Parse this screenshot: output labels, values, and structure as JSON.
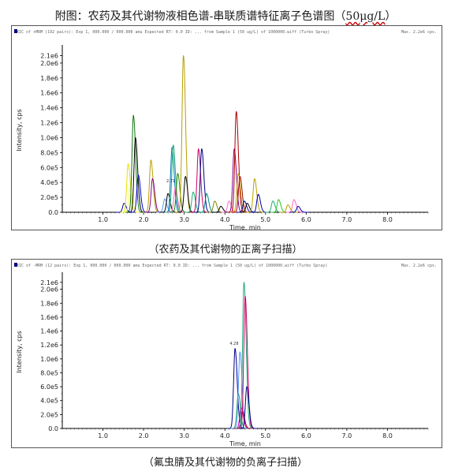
{
  "page_title": {
    "text": "附图：农药及其代谢物液相色谱-串联质谱特征离子色谱图（",
    "unit": "50μg/L",
    "close": "）"
  },
  "captions": [
    "（农药及其代谢物的正离子扫描）",
    "（氟虫腈及其代谢物的负离子扫描）"
  ],
  "chart_data": [
    {
      "type": "line",
      "xlabel": "Time, min",
      "ylabel": "Intensity, cps",
      "xlim": [
        0,
        9.0
      ],
      "ylim": [
        0,
        2200000.0
      ],
      "x_ticks": [
        "1.0",
        "2.0",
        "3.0",
        "4.0",
        "5.0",
        "6.0",
        "7.0",
        "8.0"
      ],
      "y_ticks": [
        "0.0",
        "2.0e5",
        "4.0e5",
        "6.0e5",
        "8.0e5",
        "1.0e6",
        "1.2e6",
        "1.4e6",
        "1.6e6",
        "1.8e6",
        "2.0e6",
        "2.1e6"
      ],
      "grid": false,
      "peaks": [
        {
          "rt": 1.52,
          "height": 120000,
          "color": "#0000aa"
        },
        {
          "rt": 1.62,
          "height": 650000,
          "color": "#e8e000"
        },
        {
          "rt": 1.67,
          "height": 350000,
          "color": "#ffff55"
        },
        {
          "rt": 1.75,
          "height": 1300000,
          "color": "#117711"
        },
        {
          "rt": 1.8,
          "height": 1000000,
          "color": "#000000"
        },
        {
          "rt": 1.87,
          "height": 500000,
          "color": "#0000cc"
        },
        {
          "rt": 2.18,
          "height": 700000,
          "color": "#b8a000"
        },
        {
          "rt": 2.22,
          "height": 450000,
          "color": "#880088"
        },
        {
          "rt": 2.52,
          "height": 180000,
          "color": "#5599ff"
        },
        {
          "rt": 2.6,
          "height": 250000,
          "color": "#000000"
        },
        {
          "rt": 2.7,
          "height": 870000,
          "color": "#0077bb"
        },
        {
          "rt": 2.73,
          "height": 900000,
          "color": "#22aa77"
        },
        {
          "rt": 2.78,
          "height": 330000,
          "color": "#ff66cc"
        },
        {
          "rt": 2.84,
          "height": 520000,
          "color": "#228800"
        },
        {
          "rt": 2.98,
          "height": 2100000,
          "color": "#b8a000"
        },
        {
          "rt": 3.03,
          "height": 480000,
          "color": "#000000"
        },
        {
          "rt": 3.22,
          "height": 270000,
          "color": "#22aa77"
        },
        {
          "rt": 3.35,
          "height": 850000,
          "color": "#cc0066"
        },
        {
          "rt": 3.43,
          "height": 850000,
          "color": "#000088"
        },
        {
          "rt": 3.55,
          "height": 250000,
          "color": "#008888"
        },
        {
          "rt": 3.75,
          "height": 150000,
          "color": "#888800"
        },
        {
          "rt": 3.9,
          "height": 80000,
          "color": "#000000"
        },
        {
          "rt": 4.1,
          "height": 150000,
          "color": "#ff66cc"
        },
        {
          "rt": 4.23,
          "height": 850000,
          "color": "#880088"
        },
        {
          "rt": 4.28,
          "height": 1350000,
          "color": "#aa0000"
        },
        {
          "rt": 4.33,
          "height": 520000,
          "color": "#b8a000"
        },
        {
          "rt": 4.37,
          "height": 480000,
          "color": "#aa0000"
        },
        {
          "rt": 4.48,
          "height": 150000,
          "color": "#0000aa"
        },
        {
          "rt": 4.55,
          "height": 120000,
          "color": "#000000"
        },
        {
          "rt": 4.73,
          "height": 450000,
          "color": "#b8a000"
        },
        {
          "rt": 4.82,
          "height": 240000,
          "color": "#0000aa"
        },
        {
          "rt": 5.18,
          "height": 150000,
          "color": "#22aa77"
        },
        {
          "rt": 5.32,
          "height": 170000,
          "color": "#22cc22"
        },
        {
          "rt": 5.55,
          "height": 100000,
          "color": "#b8a000"
        },
        {
          "rt": 5.7,
          "height": 170000,
          "color": "#ff66cc"
        },
        {
          "rt": 5.8,
          "height": 80000,
          "color": "#0000aa"
        }
      ],
      "annotations": [
        {
          "text": "2.71",
          "x": 2.56,
          "y": 400000
        }
      ]
    },
    {
      "type": "line",
      "xlabel": "Time, min",
      "ylabel": "Intensity, cps",
      "xlim": [
        0,
        9.0
      ],
      "ylim": [
        0,
        2200000.0
      ],
      "x_ticks": [
        "1.0",
        "2.0",
        "3.0",
        "4.0",
        "5.0",
        "6.0",
        "7.0",
        "8.0"
      ],
      "y_ticks": [
        "0.0",
        "2.0e5",
        "4.0e5",
        "6.0e5",
        "8.0e5",
        "1.0e6",
        "1.2e6",
        "1.4e6",
        "1.6e6",
        "1.8e6",
        "2.0e6",
        "2.1e6"
      ],
      "grid": false,
      "peaks": [
        {
          "rt": 4.25,
          "height": 1150000,
          "color": "#000088"
        },
        {
          "rt": 4.33,
          "height": 500000,
          "color": "#22aa77"
        },
        {
          "rt": 4.37,
          "height": 1100000,
          "color": "#5599ff"
        },
        {
          "rt": 4.4,
          "height": 300000,
          "color": "#cc00cc"
        },
        {
          "rt": 4.43,
          "height": 250000,
          "color": "#aa0000"
        },
        {
          "rt": 4.47,
          "height": 2100000,
          "color": "#22aa77"
        },
        {
          "rt": 4.5,
          "height": 1900000,
          "color": "#cc0066"
        },
        {
          "rt": 4.54,
          "height": 600000,
          "color": "#000088"
        }
      ],
      "annotations": [
        {
          "text": "4.28",
          "x": 4.12,
          "y": 1200000
        }
      ]
    }
  ],
  "header_text": [
    "XIC of +MRM (192 pairs): Exp 1, 000.000 / 000.000 amu Expected RT: 0.0 ID: ... from Sample 1 (50 ug/L) of 1000000.wiff (Turbo Spray)",
    "XIC of -MRM (12 pairs): Exp 1, 000.000 / 000.000 amu Expected RT: 0.0 ID: ... from Sample 1 (50 ug/L) of 1000000.wiff (Turbo Spray)"
  ],
  "header_right": [
    "Max. 2.2e6 cps.",
    "Max. 2.2e6 cps."
  ]
}
